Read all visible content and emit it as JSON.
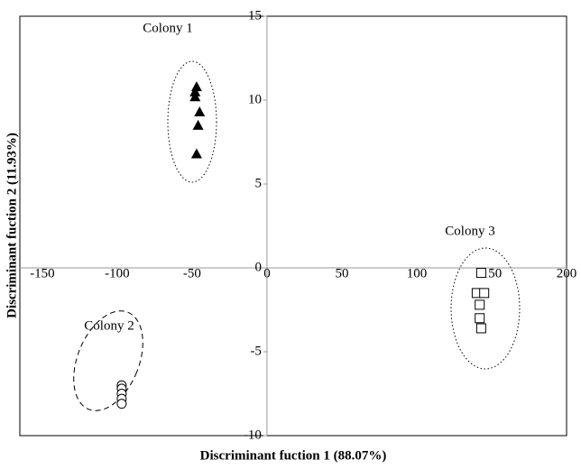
{
  "chart_data": {
    "type": "scatter",
    "xlabel": "Discriminant fuction 1 (88.07%)",
    "ylabel": "Discriminant fuction 2 (11.93%)",
    "xlim": [
      -165,
      200
    ],
    "ylim": [
      -10,
      15
    ],
    "xticks": [
      -150,
      -100,
      -50,
      0,
      50,
      100,
      150,
      200
    ],
    "yticks": [
      -10,
      -5,
      0,
      5,
      10,
      15
    ],
    "series": [
      {
        "marker": "triangle",
        "color": "#000000",
        "x": [
          -47,
          -48,
          -48,
          -45,
          -46,
          -47
        ],
        "values": [
          10.8,
          10.5,
          10.2,
          9.3,
          8.5,
          6.8
        ]
      },
      {
        "marker": "circle",
        "color": "#000000",
        "x": [
          -97,
          -97,
          -97,
          -97,
          -97
        ],
        "values": [
          -7.0,
          -7.2,
          -7.5,
          -7.8,
          -8.1
        ]
      },
      {
        "marker": "square",
        "color": "#000000",
        "x": [
          143,
          140,
          145,
          142,
          142,
          143
        ],
        "values": [
          -0.3,
          -1.5,
          -1.5,
          -2.2,
          -3.0,
          -3.6
        ]
      }
    ],
    "annotations": [
      "Colony 1",
      "Colony 2",
      "Colony 3"
    ]
  }
}
